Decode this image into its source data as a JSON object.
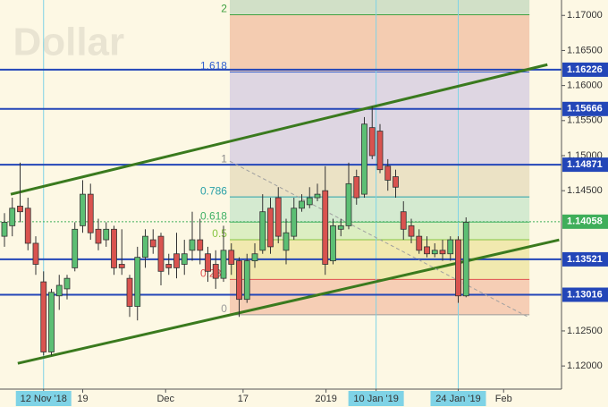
{
  "chart_data": {
    "type": "candlestick",
    "watermark": ", Dollar",
    "background": "#fdf8e4",
    "up_color": "#5cbf74",
    "down_color": "#d9534f",
    "x": [
      0,
      1,
      2,
      3,
      4,
      5,
      6,
      7,
      8,
      9,
      10,
      11,
      12,
      13,
      14,
      15,
      16,
      17,
      18,
      19,
      20,
      21,
      22,
      23,
      24,
      25,
      26,
      27,
      28,
      29,
      30,
      31,
      32,
      33,
      34,
      35,
      36,
      37,
      38,
      39,
      40,
      41,
      42,
      43,
      44,
      45,
      46,
      47,
      48,
      49,
      50,
      51,
      52,
      53,
      54,
      55,
      56,
      57,
      58,
      59
    ],
    "open": [
      1.1385,
      1.14,
      1.1428,
      1.1425,
      1.1375,
      1.132,
      1.122,
      1.13,
      1.131,
      1.134,
      1.14,
      1.1445,
      1.1395,
      1.138,
      1.1395,
      1.1345,
      1.1325,
      1.1285,
      1.1355,
      1.138,
      1.1385,
      1.1345,
      1.136,
      1.1345,
      1.1365,
      1.138,
      1.136,
      1.1345,
      1.1325,
      1.1365,
      1.135,
      1.1295,
      1.135,
      1.1365,
      1.1425,
      1.144,
      1.1365,
      1.1385,
      1.1425,
      1.143,
      1.144,
      1.145,
      1.135,
      1.1395,
      1.14,
      1.147,
      1.1445,
      1.154,
      1.1535,
      1.1485,
      1.147,
      1.142,
      1.14,
      1.1385,
      1.137,
      1.136,
      1.1365,
      1.136,
      1.138,
      1.13
    ],
    "high": [
      1.1418,
      1.144,
      1.149,
      1.144,
      1.1385,
      1.1335,
      1.131,
      1.133,
      1.133,
      1.1405,
      1.1465,
      1.146,
      1.141,
      1.1405,
      1.14,
      1.1395,
      1.133,
      1.137,
      1.1395,
      1.1395,
      1.139,
      1.136,
      1.139,
      1.138,
      1.142,
      1.141,
      1.137,
      1.1365,
      1.14,
      1.1375,
      1.1355,
      1.136,
      1.1375,
      1.1445,
      1.144,
      1.1455,
      1.141,
      1.144,
      1.1445,
      1.1455,
      1.146,
      1.1485,
      1.141,
      1.141,
      1.149,
      1.148,
      1.1555,
      1.157,
      1.1545,
      1.1495,
      1.148,
      1.1435,
      1.141,
      1.1395,
      1.1385,
      1.1375,
      1.138,
      1.1385,
      1.1385,
      1.1412
    ],
    "low": [
      1.137,
      1.1385,
      1.1405,
      1.1365,
      1.133,
      1.1215,
      1.1215,
      1.128,
      1.1295,
      1.1335,
      1.139,
      1.138,
      1.1365,
      1.137,
      1.133,
      1.133,
      1.127,
      1.1265,
      1.134,
      1.136,
      1.1315,
      1.133,
      1.1325,
      1.133,
      1.135,
      1.1345,
      1.132,
      1.131,
      1.132,
      1.133,
      1.127,
      1.129,
      1.134,
      1.136,
      1.136,
      1.1375,
      1.1345,
      1.138,
      1.142,
      1.1425,
      1.1435,
      1.133,
      1.1345,
      1.1385,
      1.1395,
      1.143,
      1.144,
      1.1495,
      1.1475,
      1.145,
      1.144,
      1.138,
      1.1375,
      1.136,
      1.1355,
      1.1355,
      1.135,
      1.135,
      1.129,
      1.1298
    ],
    "close": [
      1.1405,
      1.1425,
      1.142,
      1.1375,
      1.1345,
      1.122,
      1.1305,
      1.1315,
      1.1325,
      1.1395,
      1.1445,
      1.139,
      1.1375,
      1.1395,
      1.134,
      1.134,
      1.1285,
      1.1355,
      1.1385,
      1.137,
      1.1335,
      1.134,
      1.134,
      1.136,
      1.138,
      1.1365,
      1.1335,
      1.1325,
      1.1365,
      1.1345,
      1.1295,
      1.135,
      1.136,
      1.142,
      1.137,
      1.1385,
      1.139,
      1.1425,
      1.1435,
      1.144,
      1.1445,
      1.1345,
      1.14,
      1.14,
      1.146,
      1.144,
      1.1545,
      1.15,
      1.148,
      1.1465,
      1.1455,
      1.1395,
      1.1385,
      1.1365,
      1.136,
      1.1365,
      1.136,
      1.138,
      1.13,
      1.1405
    ],
    "xlim": [
      -0.57,
      71.2
    ],
    "ylim": [
      1.1167,
      1.1722
    ],
    "xticks": [
      {
        "value": 5,
        "label": "12 Nov '18"
      },
      {
        "value": 10,
        "label": "19"
      },
      {
        "value": 20.6,
        "label": "Dec"
      },
      {
        "value": 30.5,
        "label": "17"
      },
      {
        "value": 41.1,
        "label": "2019"
      },
      {
        "value": 47.5,
        "label": "10 Jan '19"
      },
      {
        "value": 58,
        "label": "24 Jan '19"
      },
      {
        "value": 63.8,
        "label": "Feb"
      }
    ],
    "highlighted_xticks": [
      0,
      5,
      6
    ],
    "highlight_color": "#7fd3e6",
    "yticks": [
      {
        "value": 1.17,
        "label": "1.17000"
      },
      {
        "value": 1.165,
        "label": "1.16500"
      },
      {
        "value": 1.16,
        "label": "1.16000"
      },
      {
        "value": 1.155,
        "label": "1.15500"
      },
      {
        "value": 1.15,
        "label": "1.15000"
      },
      {
        "value": 1.145,
        "label": "1.14500"
      },
      {
        "value": 1.125,
        "label": "1.12500"
      },
      {
        "value": 1.12,
        "label": "1.12000"
      }
    ],
    "levels": [
      {
        "value": 1.16226,
        "color": "#2346b8"
      },
      {
        "value": 1.15666,
        "color": "#2346b8"
      },
      {
        "value": 1.14871,
        "color": "#2346b8"
      },
      {
        "value": 1.13521,
        "color": "#2346b8"
      },
      {
        "value": 1.13016,
        "color": "#2346b8"
      }
    ],
    "current_price": {
      "value": 1.14058,
      "color": "#3fae5a"
    },
    "fib": {
      "x": [
        28.8,
        67.1
      ],
      "prices": [
        1.1273,
        1.1487
      ],
      "levels": [
        {
          "value": 0,
          "color": "#9a9a9a",
          "band": "#f4c7ad"
        },
        {
          "value": 0.236,
          "color": "#e05050",
          "band": "#efe6a6"
        },
        {
          "value": 0.5,
          "color": "#86c440",
          "band": "#d6ecbc"
        },
        {
          "value": 0.618,
          "color": "#3fb065",
          "band": "#cde8cc"
        },
        {
          "value": 0.786,
          "color": "#2aa0a8",
          "band": "#e8dec0"
        },
        {
          "value": 1,
          "color": "#8a8a8a",
          "band": "#d8d0e2"
        },
        {
          "value": 1.618,
          "color": "#3060d0",
          "band": "#f2c4a8"
        },
        {
          "value": 2,
          "color": "#3fa040",
          "band": "#c9dcc2"
        }
      ]
    },
    "trendlines": [
      {
        "x": [
          0.8,
          69.4
        ],
        "y": [
          1.14449,
          1.16298
        ],
        "color": "#3a7a1e",
        "width": 3
      },
      {
        "x": [
          1.7,
          70.9
        ],
        "y": [
          1.12038,
          1.13798
        ],
        "color": "#3a7a1e",
        "width": 3
      },
      {
        "x": [
          28.8,
          67.1
        ],
        "y": [
          1.14921,
          1.12689
        ],
        "color": "#a0a0a0",
        "width": 1,
        "dash": true
      }
    ]
  }
}
